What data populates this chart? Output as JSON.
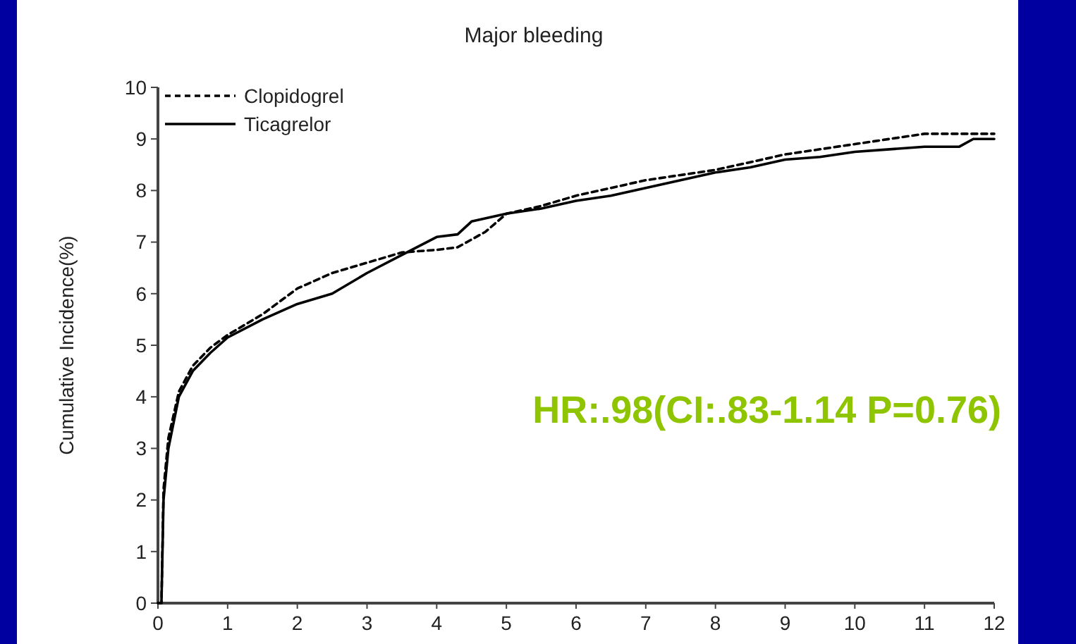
{
  "chart_data": {
    "type": "line",
    "title": "Major bleeding",
    "ylabel": "Cumulative Incidence(%)",
    "annotations": [
      "HR:.98(CI:.83-1.14 P=0.76)"
    ],
    "xlim": [
      0,
      12
    ],
    "xticks": [
      0,
      1,
      2,
      3,
      4,
      5,
      6,
      7,
      8,
      9,
      10,
      11,
      12
    ],
    "ylim": [
      0,
      10
    ],
    "yticks": [
      0,
      1,
      2,
      3,
      4,
      5,
      6,
      7,
      8,
      9,
      10
    ],
    "grid": false,
    "legend": "top left",
    "series": [
      {
        "name": "Clopidogrel",
        "color": "#000000",
        "line_style": "dashed",
        "x": [
          0,
          0.05,
          0.08,
          0.15,
          0.3,
          0.5,
          0.75,
          1,
          1.5,
          2,
          2.5,
          3,
          3.5,
          4,
          4.3,
          4.7,
          5,
          5.5,
          6,
          6.5,
          7,
          7.5,
          8,
          8.5,
          9,
          9.5,
          10,
          10.5,
          11,
          11.5,
          12
        ],
        "values": [
          0,
          0,
          2.2,
          3.2,
          4.1,
          4.6,
          4.95,
          5.2,
          5.6,
          6.1,
          6.4,
          6.6,
          6.8,
          6.85,
          6.9,
          7.2,
          7.55,
          7.7,
          7.9,
          8.05,
          8.2,
          8.3,
          8.4,
          8.55,
          8.7,
          8.8,
          8.9,
          9.0,
          9.1,
          9.1,
          9.1
        ]
      },
      {
        "name": "Ticagrelor",
        "color": "#000000",
        "line_style": "solid",
        "x": [
          0,
          0.05,
          0.08,
          0.15,
          0.3,
          0.5,
          0.75,
          1,
          1.5,
          2,
          2.5,
          3,
          3.5,
          4,
          4.3,
          4.5,
          5,
          5.5,
          6,
          6.5,
          7,
          7.5,
          8,
          8.5,
          9,
          9.5,
          10,
          10.5,
          11,
          11.5,
          11.7,
          12
        ],
        "values": [
          0,
          0,
          2,
          3,
          4,
          4.5,
          4.85,
          5.15,
          5.5,
          5.8,
          6,
          6.4,
          6.75,
          7.1,
          7.15,
          7.4,
          7.55,
          7.65,
          7.8,
          7.9,
          8.05,
          8.2,
          8.35,
          8.45,
          8.6,
          8.65,
          8.75,
          8.8,
          8.85,
          8.85,
          9,
          9
        ]
      }
    ]
  }
}
